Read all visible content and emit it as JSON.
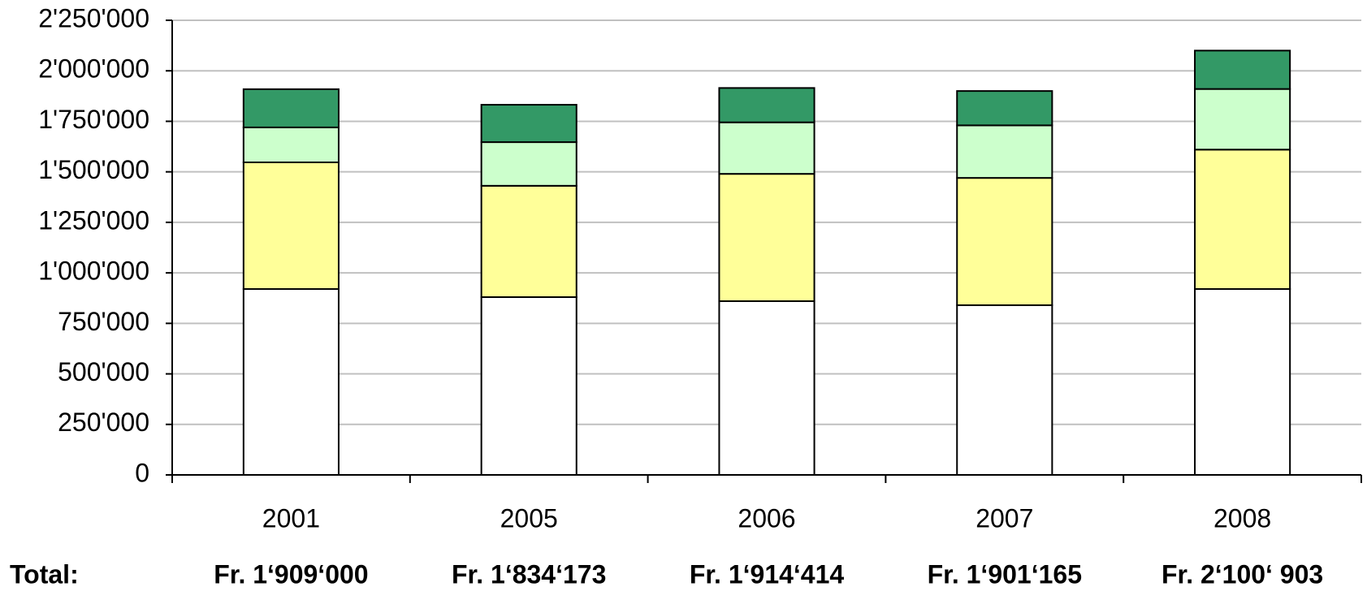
{
  "chart_data": {
    "type": "stacked_bar",
    "categories": [
      "2001",
      "2005",
      "2006",
      "2007",
      "2008"
    ],
    "series": [
      {
        "color": "#ffffff",
        "values": [
          920000,
          880000,
          860000,
          840000,
          920000
        ]
      },
      {
        "color": "#ffff99",
        "values": [
          627000,
          551000,
          630000,
          630000,
          690000
        ]
      },
      {
        "color": "#ccffcc",
        "values": [
          173000,
          216000,
          255000,
          260000,
          300000
        ]
      },
      {
        "color": "#339966",
        "values": [
          189000,
          185000,
          170000,
          170000,
          190000
        ]
      }
    ],
    "ylim": [
      0,
      2250000
    ],
    "yticks": [
      0,
      {
        "value": 250000,
        "label": "250'000"
      },
      {
        "value": 500000,
        "label": "500'000"
      },
      {
        "value": 750000,
        "label": "750'000"
      },
      {
        "value": 1000000,
        "label": "1'000'000"
      },
      {
        "value": 1250000,
        "label": "1'250'000"
      },
      {
        "value": 1500000,
        "label": "1'500'000"
      },
      {
        "value": 1750000,
        "label": "1'750'000"
      },
      {
        "value": 2000000,
        "label": "2'000'000"
      },
      {
        "value": 2250000,
        "label": "2'250'000"
      }
    ],
    "grid": true,
    "totals_label": "Total:",
    "totals": [
      "Fr. 1‘909‘000",
      "Fr. 1‘834‘173",
      "Fr. 1‘914‘414",
      "Fr. 1‘901‘165",
      "Fr. 2‘100‘ 903"
    ]
  }
}
